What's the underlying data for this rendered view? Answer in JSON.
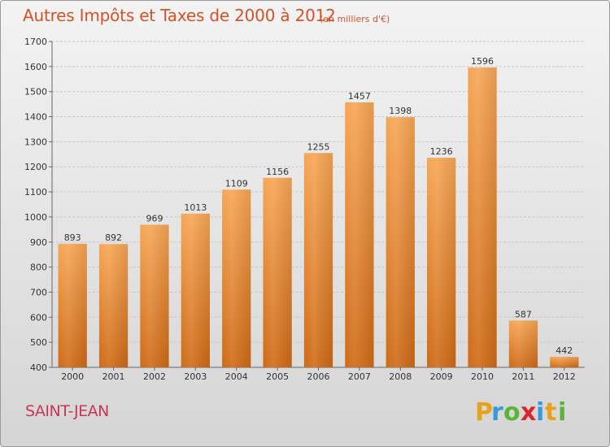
{
  "header": {
    "title": "Autres Impôts et Taxes de 2000 à 2012",
    "unit": "(en milliers d'€)"
  },
  "footer": {
    "place": "SAINT-JEAN",
    "logo_text": "Proxiti"
  },
  "colors": {
    "bar_top": "#f7a655",
    "bar_bottom": "#cf6a16",
    "title": "#d2522a",
    "place": "#c8365a"
  },
  "chart_data": {
    "type": "bar",
    "title": "Autres Impôts et Taxes de 2000 à 2012",
    "subtitle": "(en milliers d'€)",
    "xlabel": "",
    "ylabel": "",
    "categories": [
      "2000",
      "2001",
      "2002",
      "2003",
      "2004",
      "2005",
      "2006",
      "2007",
      "2008",
      "2009",
      "2010",
      "2011",
      "2012"
    ],
    "values": [
      893,
      892,
      969,
      1013,
      1109,
      1156,
      1255,
      1457,
      1398,
      1236,
      1596,
      587,
      442
    ],
    "ylim": [
      400,
      1700
    ],
    "yticks": [
      400,
      500,
      600,
      700,
      800,
      900,
      1000,
      1100,
      1200,
      1300,
      1400,
      1500,
      1600,
      1700
    ],
    "grid": true,
    "legend": "none"
  }
}
